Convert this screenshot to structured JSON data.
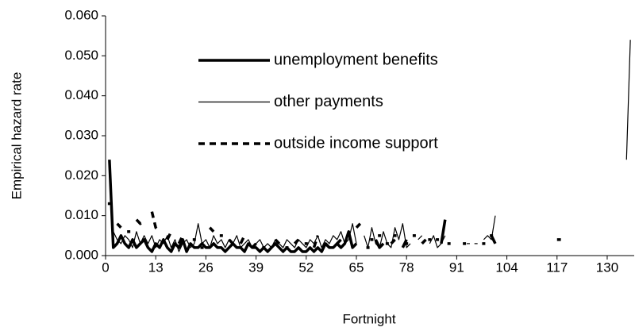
{
  "chart_data": {
    "type": "line",
    "x_label": "Fortnight",
    "y_label": "Empirical hazard rate",
    "x": [
      1,
      2,
      3,
      4,
      5,
      6,
      7,
      8,
      9,
      10,
      11,
      12,
      13,
      14,
      15,
      16,
      17,
      18,
      19,
      20,
      21,
      22,
      23,
      24,
      25,
      26,
      27,
      28,
      29,
      30,
      31,
      32,
      33,
      34,
      35,
      36,
      37,
      38,
      39,
      40,
      41,
      42,
      43,
      44,
      45,
      46,
      47,
      48,
      49,
      50,
      51,
      52,
      53,
      54,
      55,
      56,
      57,
      58,
      59,
      60,
      61,
      62,
      63,
      64,
      65,
      66,
      67,
      68,
      69,
      70,
      71,
      72,
      73,
      74,
      75,
      76,
      77,
      78,
      79,
      80,
      81,
      82,
      83,
      84,
      85,
      86,
      87,
      88,
      89,
      90,
      91,
      92,
      93,
      94,
      95,
      96,
      97,
      98,
      99,
      100,
      101,
      102,
      103,
      104,
      105,
      106,
      107,
      108,
      109,
      110,
      111,
      112,
      113,
      114,
      115,
      116,
      117,
      118,
      119,
      120,
      121,
      122,
      123,
      124,
      125,
      126,
      127,
      128,
      129,
      130,
      131,
      132,
      133,
      134,
      135,
      136
    ],
    "series": [
      {
        "name": "unemployment benefits",
        "color": "#000000",
        "style": "thick",
        "values": [
          0.024,
          0.002,
          0.003,
          0.005,
          0.003,
          0.002,
          0.004,
          0.002,
          0.003,
          0.004,
          0.002,
          0.001,
          0.003,
          0.002,
          0.004,
          0.002,
          0.001,
          0.003,
          0.002,
          0.004,
          0.001,
          0.003,
          0.002,
          0.002,
          0.003,
          0.002,
          0.002,
          0.003,
          0.002,
          0.002,
          0.001,
          0.002,
          0.003,
          0.002,
          0.002,
          0.001,
          0.003,
          0.002,
          0.002,
          0.001,
          0.002,
          0.001,
          0.002,
          0.003,
          0.002,
          0.001,
          0.002,
          0.001,
          0.001,
          0.002,
          0.001,
          0.001,
          0.002,
          0.001,
          0.002,
          0.001,
          0.003,
          0.002,
          0.002,
          0.003,
          0.002,
          0.003,
          0.006,
          0.002,
          0.003,
          null,
          null,
          0.002,
          null,
          0.004,
          0.002,
          0.003,
          null,
          0.003,
          0.004,
          null,
          0.002,
          0.004,
          null,
          null,
          null,
          0.003,
          0.004,
          null,
          null,
          null,
          0.003,
          0.009,
          null,
          null,
          null,
          null,
          null,
          null,
          null,
          null,
          null,
          null,
          null,
          0.005,
          0.003,
          null,
          null,
          null,
          null,
          null,
          null,
          null,
          null,
          null,
          null,
          null,
          null,
          null,
          null,
          null,
          null,
          null,
          null,
          null,
          null,
          null,
          null,
          null,
          null,
          null,
          null,
          null,
          null,
          null,
          null,
          null,
          null,
          null,
          null,
          null
        ]
      },
      {
        "name": "other payments",
        "color": "#000000",
        "style": "thin",
        "values": [
          0.02,
          0.006,
          0.004,
          0.003,
          0.005,
          0.004,
          0.002,
          0.006,
          0.003,
          0.005,
          0.003,
          0.005,
          0.002,
          0.004,
          0.003,
          0.005,
          0.002,
          0.004,
          0.001,
          0.003,
          0.004,
          0.002,
          0.003,
          0.008,
          0.003,
          0.004,
          0.002,
          0.005,
          0.003,
          0.004,
          0.002,
          0.004,
          0.003,
          0.005,
          0.002,
          0.003,
          0.004,
          0.002,
          0.003,
          0.004,
          0.002,
          0.003,
          0.002,
          0.004,
          0.003,
          0.002,
          0.004,
          0.003,
          0.002,
          0.004,
          0.003,
          0.002,
          0.004,
          0.003,
          0.005,
          0.002,
          0.004,
          0.003,
          0.005,
          0.004,
          0.006,
          0.003,
          0.004,
          0.008,
          0.003,
          null,
          0.005,
          0.002,
          0.007,
          0.003,
          0.002,
          0.006,
          0.003,
          0.002,
          0.007,
          0.004,
          0.008,
          0.002,
          0.003,
          null,
          0.004,
          0.005,
          null,
          0.003,
          0.005,
          0.002,
          0.003,
          0.005,
          null,
          null,
          null,
          null,
          null,
          0.003,
          null,
          0.003,
          null,
          0.004,
          0.005,
          0.004,
          0.01,
          null,
          null,
          null,
          null,
          null,
          null,
          null,
          null,
          null,
          null,
          null,
          null,
          null,
          null,
          null,
          null,
          null,
          null,
          null,
          null,
          null,
          null,
          null,
          null,
          null,
          null,
          null,
          null,
          null,
          null,
          null,
          null,
          null,
          0.024,
          0.054
        ]
      },
      {
        "name": "outside income support",
        "color": "#000000",
        "style": "dashed",
        "values": [
          0.013,
          null,
          0.008,
          0.007,
          null,
          0.006,
          null,
          0.009,
          0.008,
          0.009,
          null,
          0.011,
          0.007,
          0.006,
          null,
          0.004,
          0.006,
          null,
          0.003,
          0.005,
          null,
          null,
          0.004,
          null,
          0.002,
          null,
          0.007,
          0.006,
          null,
          0.005,
          null,
          0.004,
          0.003,
          null,
          0.003,
          0.005,
          null,
          0.002,
          0.003,
          null,
          0.002,
          null,
          null,
          0.004,
          0.003,
          null,
          0.002,
          null,
          0.003,
          0.004,
          null,
          0.003,
          null,
          0.002,
          0.005,
          null,
          0.003,
          0.002,
          null,
          0.003,
          0.004,
          null,
          0.005,
          null,
          0.007,
          0.008,
          null,
          null,
          0.004,
          null,
          0.005,
          null,
          0.003,
          null,
          0.005,
          null,
          null,
          0.003,
          null,
          0.005,
          null,
          null,
          null,
          0.004,
          null,
          0.004,
          null,
          null,
          0.003,
          null,
          null,
          null,
          0.003,
          null,
          null,
          null,
          null,
          0.003,
          null,
          0.005,
          null,
          null,
          null,
          null,
          null,
          null,
          null,
          null,
          null,
          null,
          null,
          null,
          null,
          null,
          null,
          null,
          0.004,
          0.004,
          null,
          null,
          null,
          null,
          null,
          null,
          null,
          null,
          null,
          null,
          null,
          null,
          null,
          null,
          null,
          null,
          null,
          null
        ]
      }
    ],
    "xlim": [
      0,
      137
    ],
    "xticks": [
      0,
      13,
      26,
      39,
      52,
      65,
      78,
      91,
      104,
      117,
      130
    ],
    "ylim": [
      0,
      0.06
    ],
    "yticks": [
      {
        "value": 0,
        "label": "0.000"
      },
      {
        "value": 0.01,
        "label": "0.010"
      },
      {
        "value": 0.02,
        "label": "0.020"
      },
      {
        "value": 0.03,
        "label": "0.030"
      },
      {
        "value": 0.04,
        "label": "0.040"
      },
      {
        "value": 0.05,
        "label": "0.050"
      },
      {
        "value": 0.06,
        "label": "0.060"
      }
    ],
    "legend": "top"
  }
}
